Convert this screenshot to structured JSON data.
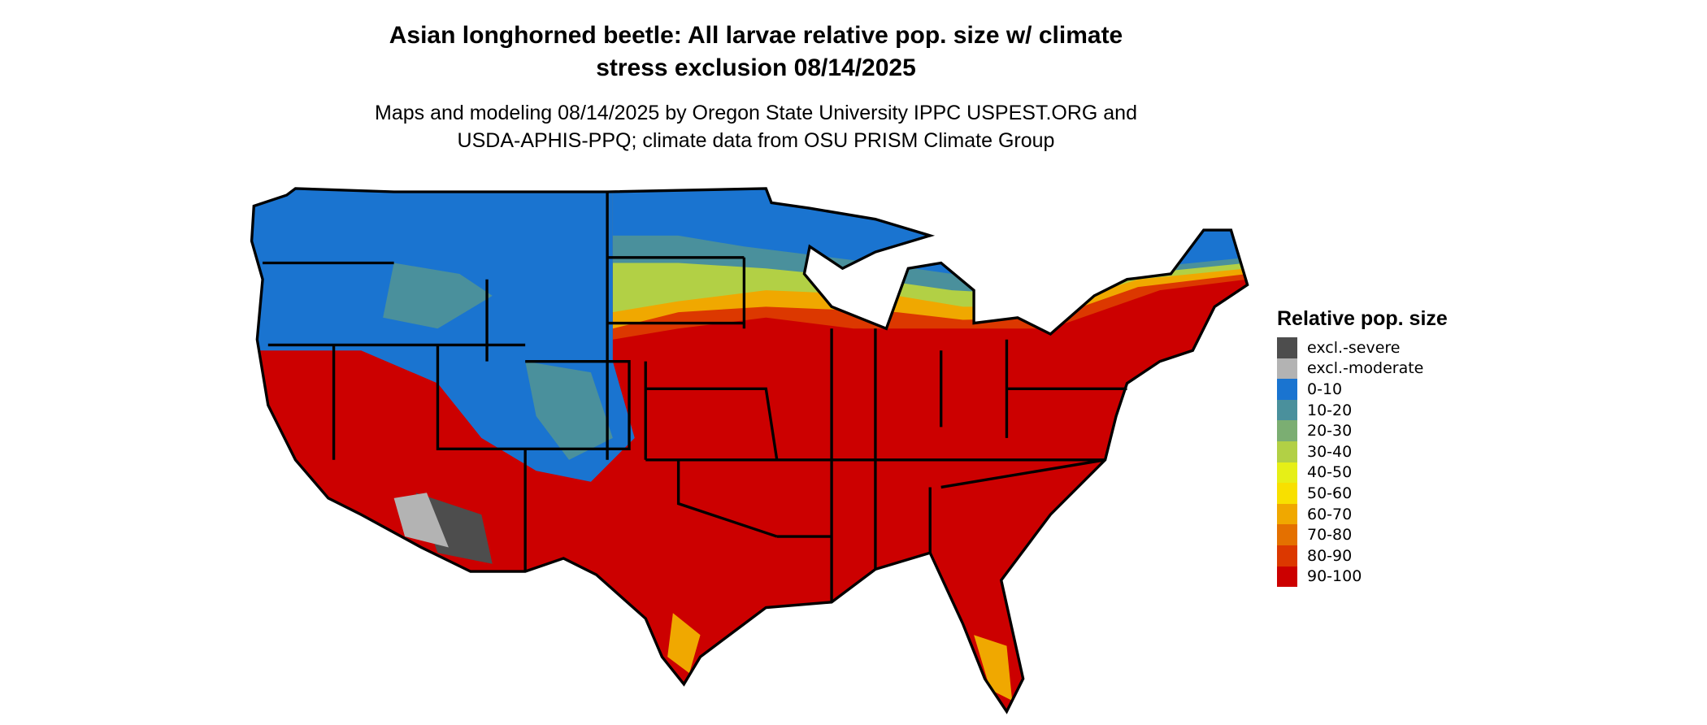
{
  "title": {
    "line1": "Asian longhorned beetle: All larvae relative pop. size w/ climate",
    "line2": "stress exclusion 08/14/2025"
  },
  "subtitle": {
    "line1": "Maps and modeling 08/14/2025 by Oregon State University IPPC USPEST.ORG and",
    "line2": "USDA-APHIS-PPQ; climate data from OSU PRISM Climate Group"
  },
  "legend": {
    "title": "Relative pop. size",
    "items": [
      {
        "label": "excl.-severe",
        "color": "#4d4d4d"
      },
      {
        "label": "excl.-moderate",
        "color": "#b3b3b3"
      },
      {
        "label": "0-10",
        "color": "#1a74d0"
      },
      {
        "label": "10-20",
        "color": "#4a909c"
      },
      {
        "label": "20-30",
        "color": "#7bae72"
      },
      {
        "label": "30-40",
        "color": "#b2d045"
      },
      {
        "label": "40-50",
        "color": "#e6ef17"
      },
      {
        "label": "50-60",
        "color": "#f8e000"
      },
      {
        "label": "60-70",
        "color": "#f0a800"
      },
      {
        "label": "70-80",
        "color": "#e47000"
      },
      {
        "label": "80-90",
        "color": "#dc3800"
      },
      {
        "label": "90-100",
        "color": "#cc0000"
      }
    ]
  }
}
